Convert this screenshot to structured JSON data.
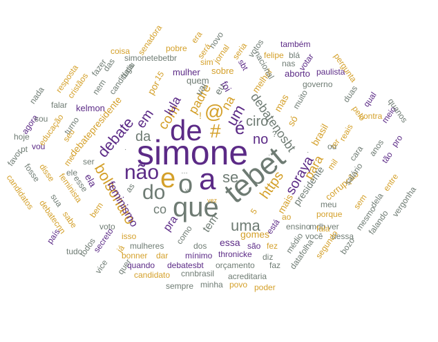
{
  "colors": {
    "purple": "#5b2a86",
    "gold": "#d4a02a",
    "gray": "#6e7b73"
  },
  "words": {
    "simone": "simone",
    "tebet": "tebet",
    "de": "de",
    "que": "que",
    "a": "a",
    "o": "o",
    "e": "e",
    "nao": "não",
    "do": "do",
    "bolsonaro": "bolsonaro",
    "uma": "uma",
    "https": "https",
    "soraya": "soraya",
    "para": "para",
    "mais": "mais",
    "debate": "debate",
    "com": "com",
    "um": "um",
    "debatenosbt": "debatenosbt",
    "ciro": "ciro",
    "no": "no",
    "da": "da",
    "se": "se",
    "ea": "é",
    "na": "na",
    "at": "@",
    "hash": "#",
    "padre": "padre",
    "lula": "lula",
    "em": "em",
    "co": "co",
    "feminismo": "feminismo",
    "pra": "pra",
    "tem": "tem",
    "essa": "essa",
    "gomes": "gomes",
    "debatepresidente": "debatepresidente",
    "mas": "mas",
    "so": "só",
    "brasil": "brasil",
    "presidente": "presidente",
    "corrupcao": "corrupção",
    "ela": "ela",
    "kelmon": "kelmon",
    "eu": "eu",
    "foi": "foi",
    "vai": "vai",
    "por": "por",
    "quem": "quem",
    "sobre": "sobre",
    "mulher": "mulher",
    "melhor": "melhor",
    "sbt": "sbt",
    "nacional": "nacional",
    "aborto": "aborto",
    "governo": "governo",
    "paulista": "paulista",
    "muito": "muito",
    "duas": "duas",
    "pelo": "pelo",
    "qual": "qual",
    "meio": "meio",
    "quanos": "quanos",
    "anos": "anos",
    "pro": "pro",
    "contra": "contra",
    "cara": "cara",
    "tao": "tão",
    "reais": "reais",
    "ter": "ter",
    "mil": "mil",
    "salario": "salário",
    "entre": "entre",
    "vergonha": "vergonha",
    "dela": "dela",
    "mesmo": "mesmo",
    "falando": "falando",
    "sem": "sem",
    "bozo": "bozo",
    "ver": "ver",
    "porque": "porque",
    "meu": "meu",
    "ou": "ou",
    "dessa": "dessa",
    "voce": "você",
    "medio": "médio",
    "ensino": "ensino",
    "mdb": "mdb",
    "datafolha": "datafolha",
    "fala": "fala",
    "segundo": "segundo",
    "ao": "ao",
    "fez": "fez",
    "esta": "está",
    "sao": "são",
    "diz": "diz",
    "faz": "faz",
    "acreditaria": "acreditaria",
    "poder": "poder",
    "povo": "povo",
    "minha": "minha",
    "sempre": "sempre",
    "cnnbrasil": "cnnbrasil",
    "candidato": "candidato",
    "orcamento": "orçamento",
    "quando": "quando",
    "debatesbt": "debatesbt",
    "bonner": "bonner",
    "dar": "dar",
    "minimo": "mínimo",
    "thronicke": "thronicke",
    "mulheres": "mulheres",
    "dos": "dos",
    "como": "como",
    "ja": "já",
    "isso": "isso",
    "voto": "voto",
    "bem": "bem",
    "secreto": "secreto",
    "todos": "todos",
    "tudo": "tudo",
    "vice": "vice",
    "quer": "quer",
    "pais": "país",
    "debatecnn": "debatecnn",
    "sabe": "sabe",
    "feminista": "feminista",
    "disse": "disse",
    "sua": "sua",
    "candidatos": "candidatos",
    "fosse": "fosse",
    "favor": "favor",
    "hoje": "hoje",
    "pt": "pt",
    "vou": "vou",
    "agora": "agora",
    "educacao": "educação",
    "sou": "sou",
    "nada": "nada",
    "falar": "falar",
    "cristaos": "cristãos",
    "resposta": "resposta",
    "turno": "turno",
    "seu": "seu",
    "me": "me",
    "ser": "ser",
    "ele": "ele",
    "esse": "esse",
    "as": "as",
    "nem": "nem",
    "das": "das",
    "fazer": "fazer",
    "candidata": "candidata",
    "fugiu": "fugiu",
    "simonetebetbr": "simonetebetbr",
    "coisa": "coisa",
    "senadora": "senadora",
    "pobre": "pobre",
    "era": "era",
    "novo": "novo",
    "sera": "será",
    "jornal": "jornal",
    "sim": "sim",
    "seria": "seria",
    "votos": "votos",
    "felipe": "felipe",
    "bla": "blá",
    "tambem": "também",
    "nas": "nas",
    "votar": "votar",
    "pergunta": "pergunta",
    "n15": "15",
    "n5": "5",
    "vc": "vc",
    "vez": "vez",
    "excl": "!",
    "q": "?",
    "ellipsis": "…",
    "sm1": "·",
    "sm2": "·",
    "sm3": "·"
  }
}
